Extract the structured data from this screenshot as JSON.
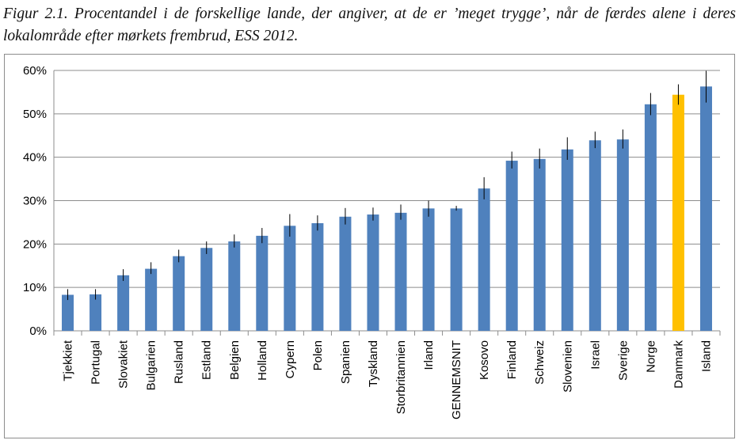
{
  "figure": {
    "caption": "Figur 2.1. Procentandel i de forskellige lande, der angiver, at de er ’meget trygge’, når de færdes alene i deres lokalområde efter mørkets frembrud, ESS 2012."
  },
  "chart_data": {
    "type": "bar",
    "ylim": [
      0,
      60
    ],
    "yticks": [
      "0%",
      "10%",
      "20%",
      "30%",
      "40%",
      "50%",
      "60%"
    ],
    "grid": true,
    "legend": "none",
    "colors": {
      "default": "#4f81bd",
      "highlight": "#ffc000",
      "error_bar": "#000000",
      "grid": "#8c8c8c"
    },
    "highlight_category": "Danmark",
    "categories": [
      "Tjekkiet",
      "Portugal",
      "Slovakiet",
      "Bulgarien",
      "Rusland",
      "Estland",
      "Belgien",
      "Holland",
      "Cypern",
      "Polen",
      "Spanien",
      "Tyskland",
      "Storbritannien",
      "Irland",
      "GENNEMSNIT",
      "Kosovo",
      "Finland",
      "Schweiz",
      "Slovenien",
      "Israel",
      "Sverige",
      "Norge",
      "Danmark",
      "Island"
    ],
    "values": [
      8.3,
      8.4,
      12.8,
      14.3,
      17.2,
      19.1,
      20.6,
      21.9,
      24.2,
      24.8,
      26.3,
      26.8,
      27.2,
      28.2,
      28.2,
      32.8,
      39.2,
      39.6,
      41.8,
      43.9,
      44.1,
      52.2,
      54.4,
      56.3
    ],
    "error_low": [
      7.1,
      7.2,
      11.5,
      13.1,
      15.8,
      17.7,
      19.2,
      20.2,
      21.7,
      23.1,
      24.5,
      25.4,
      25.6,
      26.3,
      27.7,
      30.3,
      37.4,
      37.4,
      39.4,
      42.1,
      42.0,
      49.7,
      52.1,
      52.6
    ],
    "error_high": [
      9.6,
      9.6,
      14.2,
      15.8,
      18.7,
      20.6,
      22.2,
      23.7,
      26.9,
      26.6,
      28.3,
      28.4,
      29.1,
      30.0,
      28.8,
      35.4,
      41.3,
      42.0,
      44.6,
      45.9,
      46.4,
      54.8,
      56.8,
      59.9
    ]
  }
}
